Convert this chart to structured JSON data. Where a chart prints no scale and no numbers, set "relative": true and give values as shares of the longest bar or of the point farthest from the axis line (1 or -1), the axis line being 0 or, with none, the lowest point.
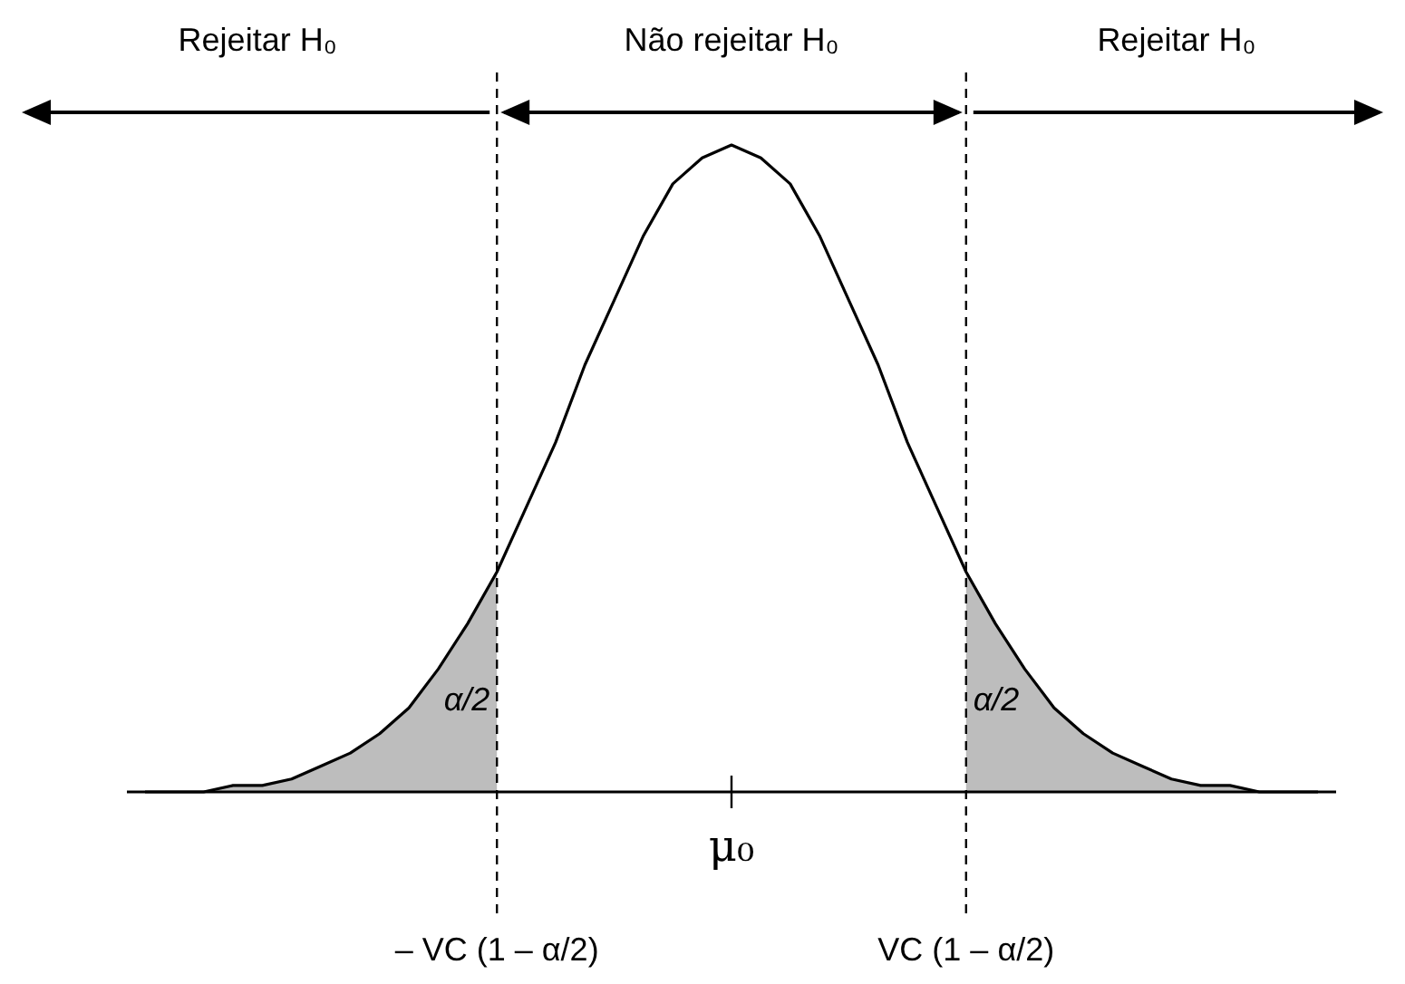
{
  "chart_data": {
    "type": "line",
    "relative": true,
    "categories": [
      null,
      null,
      null,
      null,
      null,
      null,
      null,
      null,
      null,
      null,
      null,
      null,
      "– VC (1 – α/2)",
      null,
      null,
      null,
      null,
      null,
      null,
      null,
      "μ₀",
      null,
      null,
      null,
      null,
      null,
      null,
      null,
      "VC (1 – α/2)",
      null,
      null,
      null,
      null,
      null,
      null,
      null,
      null,
      null,
      null,
      null,
      null
    ],
    "series": [
      {
        "color": "#000000",
        "values": [
          0.0,
          0.0,
          0.0,
          0.01,
          0.01,
          0.02,
          0.04,
          0.06,
          0.09,
          0.13,
          0.19,
          0.26,
          0.34,
          0.44,
          0.54,
          0.66,
          0.76,
          0.86,
          0.94,
          0.98,
          1,
          0.98,
          0.94,
          0.86,
          0.76,
          0.66,
          0.54,
          0.44,
          0.34,
          0.26,
          0.19,
          0.13,
          0.09,
          0.06,
          0.04,
          0.02,
          0.01,
          0.01,
          0.0,
          0.0,
          0.0
        ]
      },
      {
        "type": "area",
        "color": "#bdbdbd",
        "values": [
          0.0,
          0.0,
          0.0,
          0.01,
          0.01,
          0.02,
          0.04,
          0.06,
          0.09,
          0.13,
          0.19,
          0.26,
          0.34,
          null,
          null,
          null,
          null,
          null,
          null,
          null,
          null,
          null,
          null,
          null,
          null,
          null,
          null,
          null,
          0.34,
          0.26,
          0.19,
          0.13,
          0.09,
          0.06,
          0.04,
          0.02,
          0.01,
          0.01,
          0.0,
          0.0,
          0.0
        ]
      }
    ],
    "ref_lines": [
      {
        "axis": "x",
        "value": "– VC (1 – α/2)",
        "line_style": "dashed"
      },
      {
        "axis": "x",
        "value": "VC (1 – α/2)",
        "line_style": "dashed"
      }
    ],
    "annotations": [
      "Rejeitar H₀",
      "Não rejeitar H₀",
      "Rejeitar H₀",
      "α/2",
      "α/2"
    ]
  }
}
